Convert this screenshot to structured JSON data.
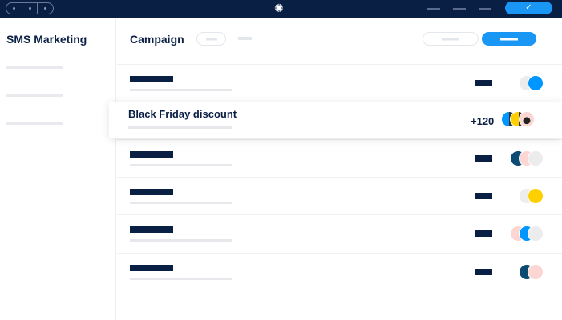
{
  "topbar": {
    "logo_icon": "hex-spiral-logo",
    "confirm_icon": "check-icon"
  },
  "sidebar": {
    "title": "SMS Marketing"
  },
  "main": {
    "title": "Campaign",
    "highlight": {
      "title": "Black Friday discount",
      "count": "+120",
      "avatars": [
        "photo-blue",
        "photo-yellow",
        "photo-pink"
      ]
    },
    "rows": [
      {
        "avatars": [
          "#ececec",
          "#0096ff"
        ]
      },
      {
        "avatars": [
          "#0a4a73",
          "#fcd6d2",
          "#ececec"
        ]
      },
      {
        "avatars": [
          "#ececec",
          "#ffd000"
        ]
      },
      {
        "avatars": [
          "#fcd6d2",
          "#0096ff",
          "#ececec"
        ]
      },
      {
        "avatars": [
          "#0a4a73",
          "#fcd6d2"
        ]
      }
    ]
  },
  "colors": {
    "navy": "#0a1f44",
    "accent": "#1a96f5"
  }
}
